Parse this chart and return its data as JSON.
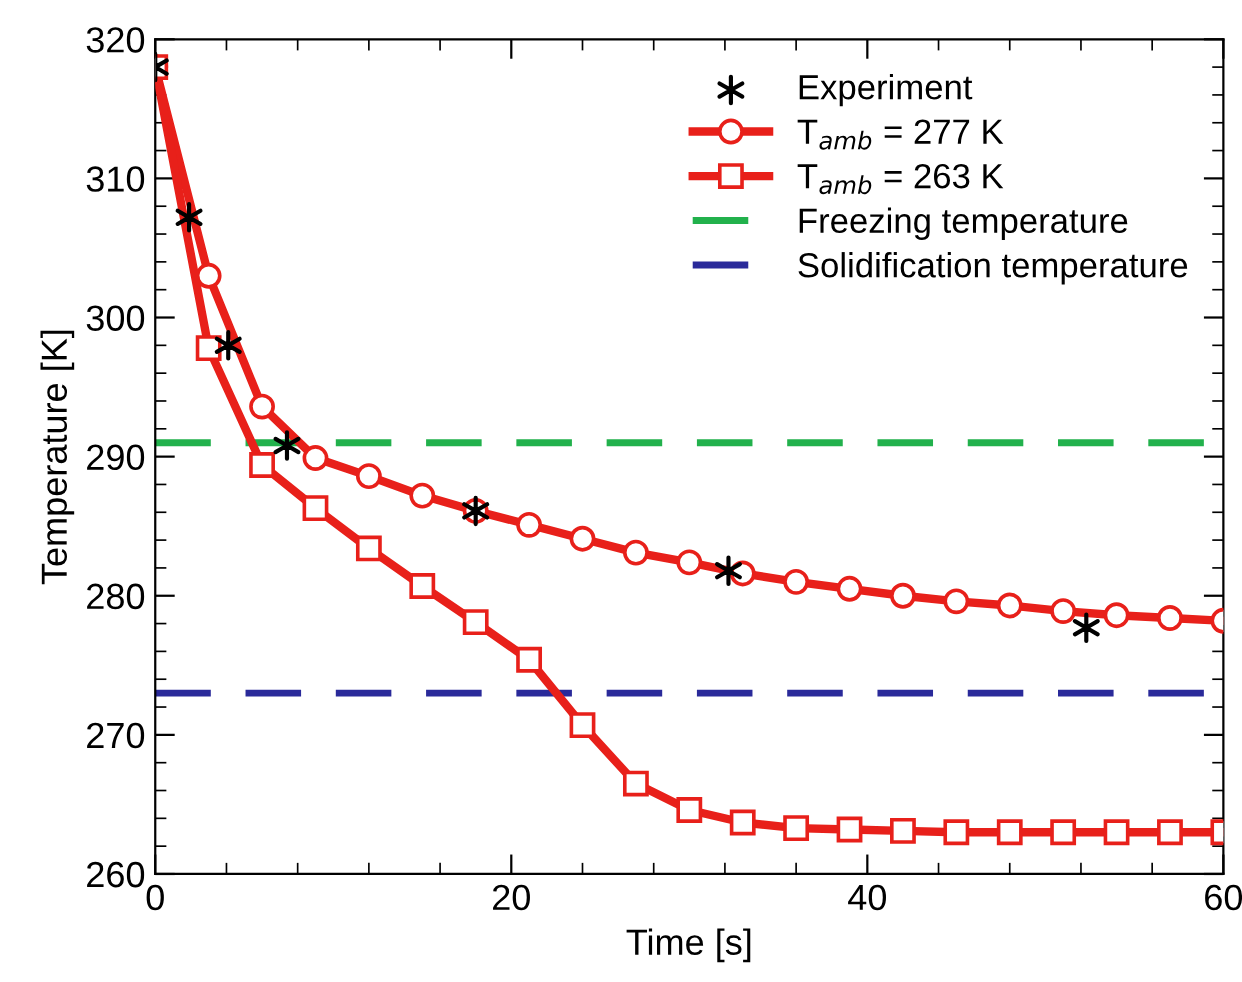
{
  "chart_data": {
    "type": "line",
    "xlabel": "Time [s]",
    "ylabel": "Temperature [K]",
    "xlim": [
      0,
      60
    ],
    "xticks": [
      0,
      20,
      40,
      60
    ],
    "ylim": [
      260,
      320
    ],
    "yticks": [
      260,
      270,
      280,
      290,
      300,
      310,
      320
    ],
    "grid": false,
    "legend": "top right",
    "series": [
      {
        "name": "Experiment",
        "type": "scatter",
        "marker": "cross",
        "color": "#000000",
        "x": [
          0,
          1.9,
          4.1,
          7.4,
          18.0,
          32.2,
          52.3
        ],
        "values": [
          318,
          307.2,
          298.0,
          290.8,
          286.1,
          281.8,
          277.7
        ]
      },
      {
        "name": "T$_{amb}$ = 277 K",
        "marker": "circle",
        "color": "#e8201a",
        "x": [
          0,
          3,
          6,
          9,
          12,
          15,
          18,
          21,
          24,
          27,
          30,
          33,
          36,
          39,
          42,
          45,
          48,
          51,
          54,
          57,
          60
        ],
        "values": [
          318,
          303.0,
          293.6,
          289.9,
          288.6,
          287.2,
          286.1,
          285.1,
          284.1,
          283.1,
          282.4,
          281.6,
          281.0,
          280.5,
          280.0,
          279.6,
          279.3,
          278.9,
          278.6,
          278.4,
          278.2
        ]
      },
      {
        "name": "T$_{amb}$ = 263 K",
        "marker": "square",
        "color": "#e8201a",
        "x": [
          0,
          3,
          6,
          9,
          12,
          15,
          18,
          21,
          24,
          27,
          30,
          33,
          36,
          39,
          42,
          45,
          48,
          51,
          54,
          57,
          60
        ],
        "values": [
          318,
          297.8,
          289.4,
          286.3,
          283.4,
          280.7,
          278.1,
          275.4,
          270.7,
          266.5,
          264.6,
          263.7,
          263.3,
          263.2,
          263.1,
          263.0,
          263.0,
          263.0,
          263.0,
          263.0,
          263.0
        ]
      }
    ],
    "ref_lines": [
      {
        "axis": "y",
        "value": 291,
        "label": "Freezing temperature",
        "color": "#22b14c",
        "line_style": "dashed"
      },
      {
        "axis": "y",
        "value": 273,
        "label": "Solidification temperature",
        "color": "#2a2a9a",
        "line_style": "dashed"
      }
    ]
  }
}
